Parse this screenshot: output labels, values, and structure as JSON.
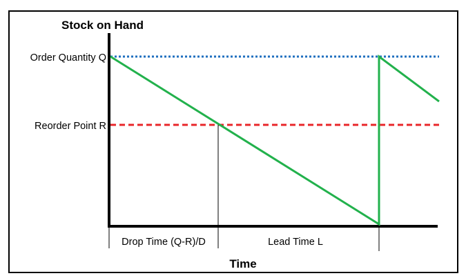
{
  "diagram": {
    "y_axis_title": "Stock on Hand",
    "x_axis_title": "Time",
    "level_labels": {
      "order_quantity": "Order Quantity Q",
      "reorder_point": "Reorder Point R"
    },
    "interval_labels": {
      "drop_time": "Drop Time (Q-R)/D",
      "lead_time": "Lead Time L"
    },
    "colors": {
      "inventory_line": "#22b14c",
      "order_quantity_line": "#1f6fbf",
      "reorder_point_line": "#e8262a",
      "axes": "#000000"
    }
  }
}
